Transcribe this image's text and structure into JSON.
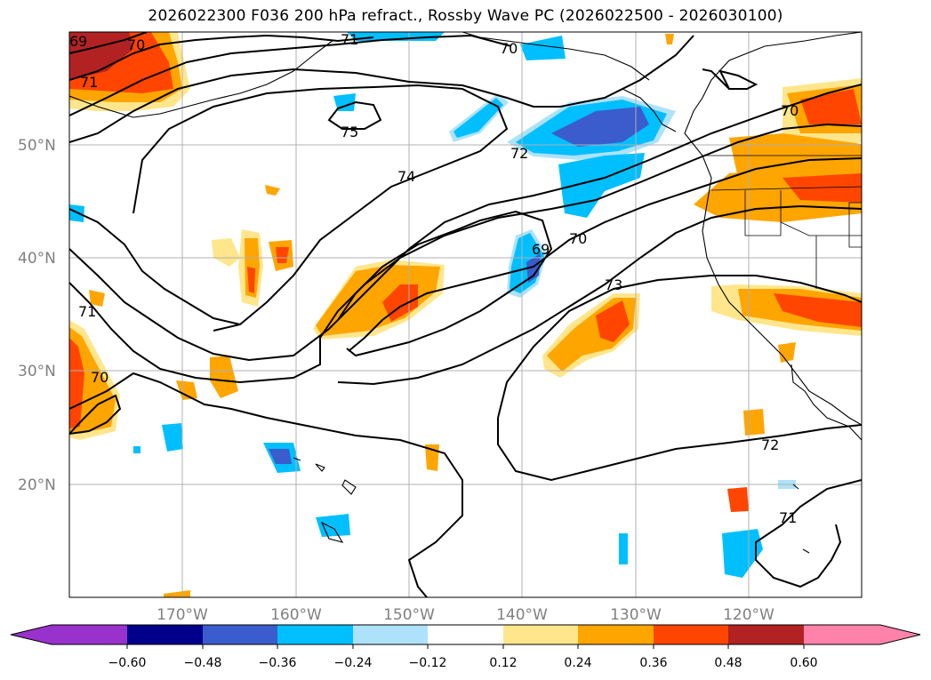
{
  "title": "2026022300 F036 200 hPa refract., Rossby Wave PC (2026022500 - 2026030100)",
  "lat_labels": [
    "50°N",
    "40°N",
    "30°N",
    "20°N"
  ],
  "lon_labels": [
    "170°W",
    "160°W",
    "150°W",
    "140°W",
    "130°W",
    "120°W"
  ],
  "contour_labels": [
    "69",
    "70",
    "71",
    "71",
    "70",
    "75",
    "74",
    "72",
    "70",
    "69",
    "70",
    "73",
    "72",
    "71",
    "71",
    "70"
  ],
  "colorbar": {
    "ticks": [
      "−0.60",
      "−0.48",
      "−0.36",
      "−0.24",
      "−0.12",
      "0.12",
      "0.24",
      "0.36",
      "0.48",
      "0.60"
    ],
    "colors": [
      "#9932cc",
      "#00008b",
      "#3a5ccc",
      "#00bfff",
      "#aee2fa",
      "#ffffff",
      "#ffe68c",
      "#ffa500",
      "#ff4500",
      "#b22222",
      "#ff82ab"
    ]
  },
  "colors": {
    "pos_light": "#ffe68c",
    "pos_mid": "#ffa500",
    "pos_strong": "#ff4500",
    "pos_max": "#b22222",
    "neg_light": "#aee2fa",
    "neg_mid": "#00bfff",
    "neg_strong": "#3a5ccc"
  }
}
